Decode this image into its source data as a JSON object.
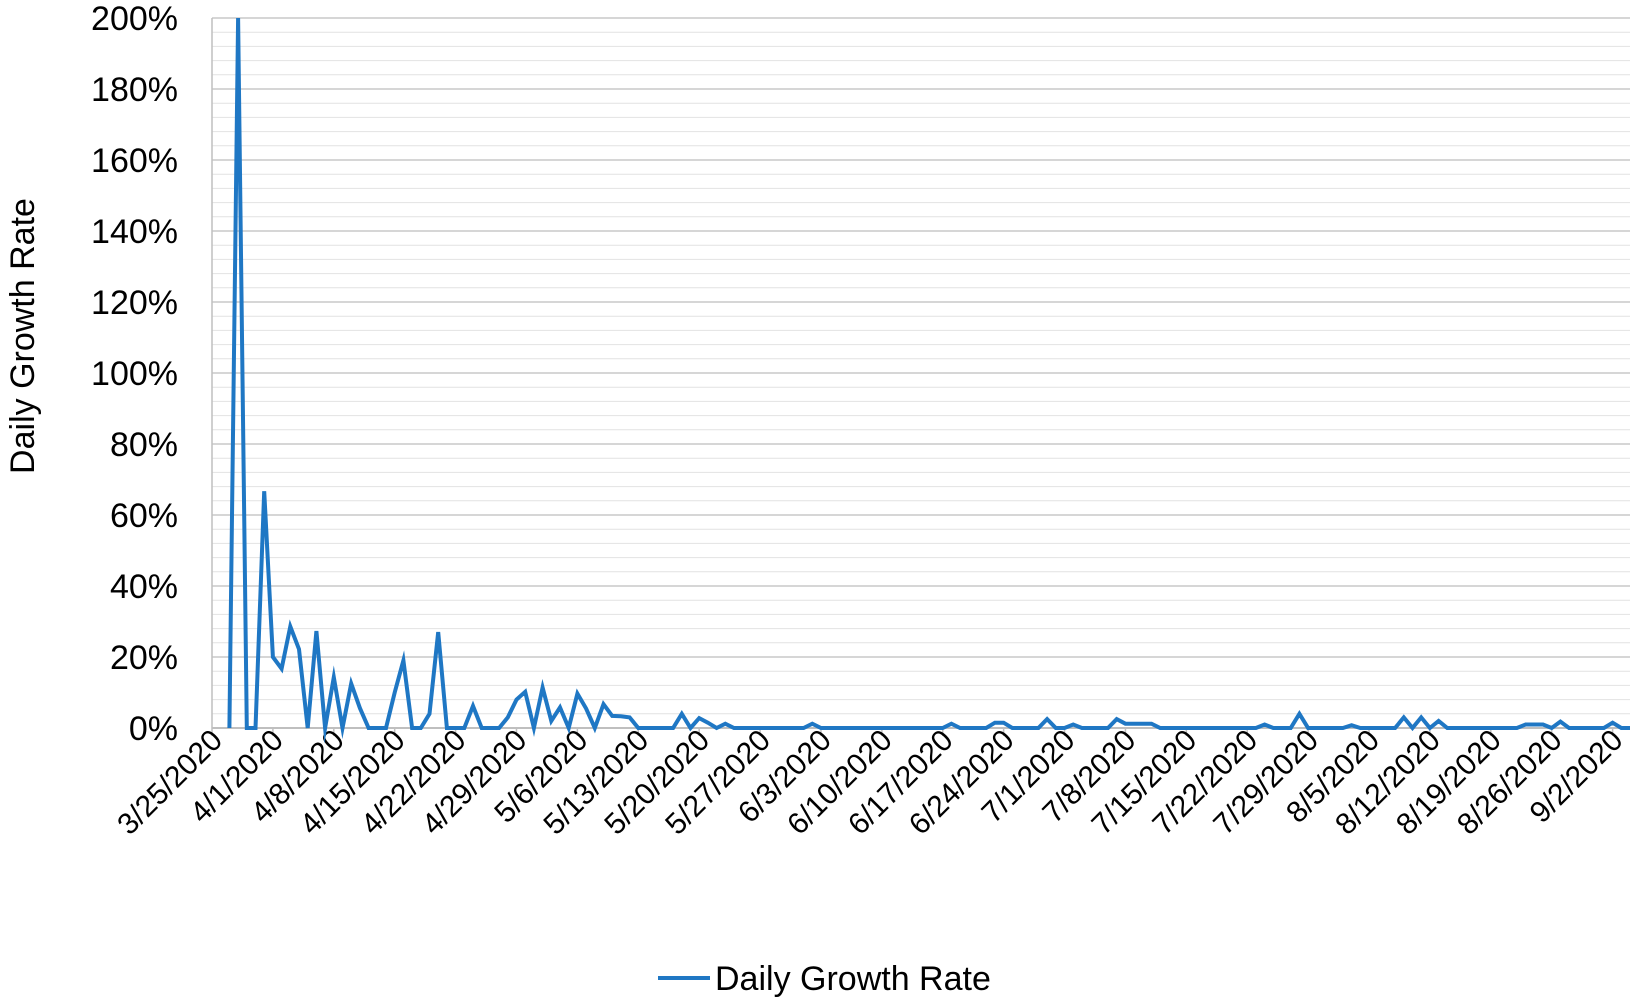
{
  "chart_data": {
    "type": "line",
    "title": "",
    "xlabel": "",
    "ylabel": "Daily Growth Rate",
    "x_axis_type": "date",
    "x_range": [
      "3/25/2020",
      "9/4/2020"
    ],
    "ylim": [
      0,
      2.0
    ],
    "y_tick_values": [
      0,
      0.2,
      0.4,
      0.6,
      0.8,
      1.0,
      1.2,
      1.4,
      1.6,
      1.8,
      2.0
    ],
    "y_tick_labels": [
      "0%",
      "20%",
      "40%",
      "60%",
      "80%",
      "100%",
      "120%",
      "140%",
      "160%",
      "180%",
      "200%"
    ],
    "x_tick_labels": [
      "3/25/2020",
      "4/1/2020",
      "4/8/2020",
      "4/15/2020",
      "4/22/2020",
      "4/29/2020",
      "5/6/2020",
      "5/13/2020",
      "5/20/2020",
      "5/27/2020",
      "6/3/2020",
      "6/10/2020",
      "6/17/2020",
      "6/24/2020",
      "7/1/2020",
      "7/8/2020",
      "7/15/2020",
      "7/22/2020",
      "7/29/2020",
      "8/5/2020",
      "8/12/2020",
      "8/19/2020",
      "8/26/2020",
      "9/2/2020"
    ],
    "grid": "horizontal minor and major gridlines",
    "legend_position": "bottom",
    "series": [
      {
        "name": "Daily Growth Rate",
        "color": "#1F77C4",
        "points": [
          [
            "3/27/2020",
            0
          ],
          [
            "3/28/2020",
            2.0
          ],
          [
            "3/29/2020",
            0
          ],
          [
            "3/30/2020",
            0
          ],
          [
            "3/31/2020",
            0.667
          ],
          [
            "4/1/2020",
            0.2
          ],
          [
            "4/2/2020",
            0.167
          ],
          [
            "4/3/2020",
            0.286
          ],
          [
            "4/4/2020",
            0.222
          ],
          [
            "4/5/2020",
            0
          ],
          [
            "4/6/2020",
            0.273
          ],
          [
            "4/7/2020",
            0
          ],
          [
            "4/8/2020",
            0.143
          ],
          [
            "4/9/2020",
            0
          ],
          [
            "4/10/2020",
            0.125
          ],
          [
            "4/11/2020",
            0.056
          ],
          [
            "4/12/2020",
            0
          ],
          [
            "4/13/2020",
            0
          ],
          [
            "4/14/2020",
            0
          ],
          [
            "4/15/2020",
            0.1
          ],
          [
            "4/16/2020",
            0.19
          ],
          [
            "4/17/2020",
            0
          ],
          [
            "4/18/2020",
            0
          ],
          [
            "4/19/2020",
            0.04
          ],
          [
            "4/20/2020",
            0.27
          ],
          [
            "4/21/2020",
            0
          ],
          [
            "4/22/2020",
            0
          ],
          [
            "4/23/2020",
            0
          ],
          [
            "4/24/2020",
            0.062
          ],
          [
            "4/25/2020",
            0
          ],
          [
            "4/26/2020",
            0
          ],
          [
            "4/27/2020",
            0
          ],
          [
            "4/28/2020",
            0.03
          ],
          [
            "4/29/2020",
            0.08
          ],
          [
            "4/30/2020",
            0.102
          ],
          [
            "5/1/2020",
            0
          ],
          [
            "5/2/2020",
            0.114
          ],
          [
            "5/3/2020",
            0.02
          ],
          [
            "5/4/2020",
            0.058
          ],
          [
            "5/5/2020",
            0
          ],
          [
            "5/6/2020",
            0.097
          ],
          [
            "5/7/2020",
            0.055
          ],
          [
            "5/8/2020",
            0
          ],
          [
            "5/9/2020",
            0.067
          ],
          [
            "5/10/2020",
            0.034
          ],
          [
            "5/11/2020",
            0.033
          ],
          [
            "5/12/2020",
            0.03
          ],
          [
            "5/13/2020",
            0
          ],
          [
            "5/14/2020",
            0
          ],
          [
            "5/15/2020",
            0
          ],
          [
            "5/16/2020",
            0
          ],
          [
            "5/17/2020",
            0
          ],
          [
            "5/18/2020",
            0.04
          ],
          [
            "5/19/2020",
            0
          ],
          [
            "5/20/2020",
            0.028
          ],
          [
            "5/21/2020",
            0.015
          ],
          [
            "5/22/2020",
            0
          ],
          [
            "5/23/2020",
            0.012
          ],
          [
            "5/24/2020",
            0
          ],
          [
            "5/25/2020",
            0
          ],
          [
            "6/1/2020",
            0
          ],
          [
            "6/2/2020",
            0.012
          ],
          [
            "6/3/2020",
            0
          ],
          [
            "6/4/2020",
            0
          ],
          [
            "6/17/2020",
            0
          ],
          [
            "6/18/2020",
            0.012
          ],
          [
            "6/19/2020",
            0
          ],
          [
            "6/20/2020",
            0
          ],
          [
            "6/21/2020",
            0
          ],
          [
            "6/22/2020",
            0
          ],
          [
            "6/23/2020",
            0.015
          ],
          [
            "6/24/2020",
            0.015
          ],
          [
            "6/25/2020",
            0
          ],
          [
            "6/26/2020",
            0
          ],
          [
            "6/27/2020",
            0
          ],
          [
            "6/28/2020",
            0
          ],
          [
            "6/29/2020",
            0.025
          ],
          [
            "6/30/2020",
            0
          ],
          [
            "7/1/2020",
            0
          ],
          [
            "7/2/2020",
            0.01
          ],
          [
            "7/3/2020",
            0
          ],
          [
            "7/4/2020",
            0
          ],
          [
            "7/5/2020",
            0
          ],
          [
            "7/6/2020",
            0
          ],
          [
            "7/7/2020",
            0.025
          ],
          [
            "7/8/2020",
            0.012
          ],
          [
            "7/9/2020",
            0.012
          ],
          [
            "7/10/2020",
            0.012
          ],
          [
            "7/11/2020",
            0.012
          ],
          [
            "7/12/2020",
            0
          ],
          [
            "7/13/2020",
            0
          ],
          [
            "7/23/2020",
            0
          ],
          [
            "7/24/2020",
            0.01
          ],
          [
            "7/25/2020",
            0
          ],
          [
            "7/26/2020",
            0
          ],
          [
            "7/27/2020",
            0
          ],
          [
            "7/28/2020",
            0.04
          ],
          [
            "7/29/2020",
            0
          ],
          [
            "7/30/2020",
            0
          ],
          [
            "7/31/2020",
            0
          ],
          [
            "8/1/2020",
            0
          ],
          [
            "8/2/2020",
            0
          ],
          [
            "8/3/2020",
            0.008
          ],
          [
            "8/4/2020",
            0
          ],
          [
            "8/5/2020",
            0
          ],
          [
            "8/6/2020",
            0
          ],
          [
            "8/7/2020",
            0
          ],
          [
            "8/8/2020",
            0
          ],
          [
            "8/9/2020",
            0.03
          ],
          [
            "8/10/2020",
            0
          ],
          [
            "8/11/2020",
            0.03
          ],
          [
            "8/12/2020",
            0
          ],
          [
            "8/13/2020",
            0.02
          ],
          [
            "8/14/2020",
            0
          ],
          [
            "8/15/2020",
            0
          ],
          [
            "8/16/2020",
            0
          ],
          [
            "8/21/2020",
            0
          ],
          [
            "8/22/2020",
            0
          ],
          [
            "8/23/2020",
            0.01
          ],
          [
            "8/24/2020",
            0.01
          ],
          [
            "8/25/2020",
            0.01
          ],
          [
            "8/26/2020",
            0
          ],
          [
            "8/27/2020",
            0.018
          ],
          [
            "8/28/2020",
            0
          ],
          [
            "8/29/2020",
            0
          ],
          [
            "8/30/2020",
            0
          ],
          [
            "8/31/2020",
            0
          ],
          [
            "9/1/2020",
            0
          ],
          [
            "9/2/2020",
            0.015
          ],
          [
            "9/3/2020",
            0
          ],
          [
            "9/4/2020",
            0
          ]
        ]
      }
    ]
  },
  "legend": {
    "label": "Daily Growth Rate"
  }
}
